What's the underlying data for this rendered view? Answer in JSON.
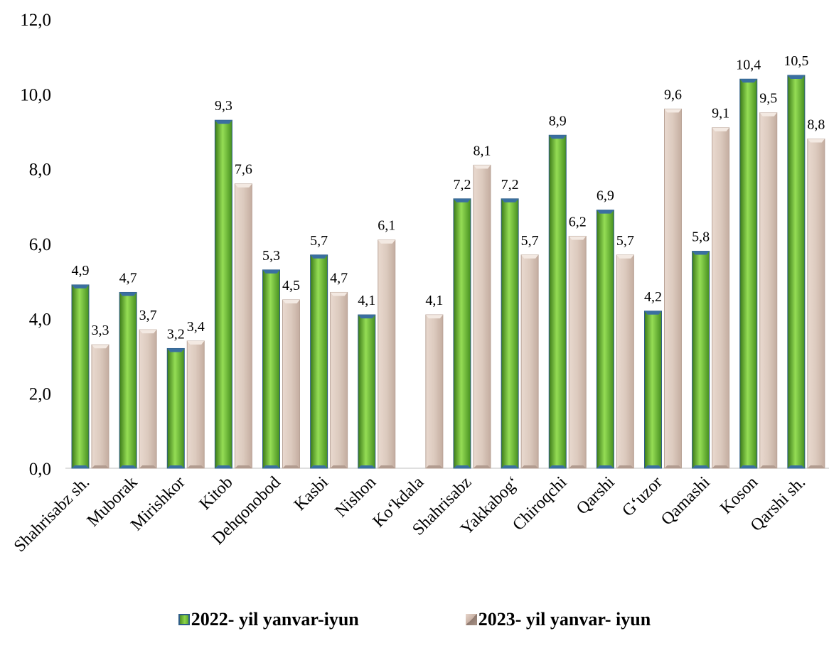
{
  "chart_data": {
    "type": "bar",
    "title": "",
    "xlabel": "",
    "ylabel": "",
    "ylim": [
      0,
      12
    ],
    "y_ticks": [
      "0,0",
      "2,0",
      "4,0",
      "6,0",
      "8,0",
      "10,0",
      "12,0"
    ],
    "grid": false,
    "legend_position": "bottom",
    "categories": [
      "Shahrisabz sh.",
      "Muborak",
      "Mirishkor",
      "Kitob",
      "Dehqonobod",
      "Kasbi",
      "Nishon",
      "Ko‘kdala",
      "Shahrisabz",
      "Yakkabog‘",
      "Chiroqchi",
      "Qarshi",
      "G‘uzor",
      "Qamashi",
      "Koson",
      "Qarshi sh."
    ],
    "series": [
      {
        "name": "2022- yil yanvar-iyun",
        "color": "#6cbf32",
        "values": [
          4.9,
          4.7,
          3.2,
          9.3,
          5.3,
          5.7,
          4.1,
          null,
          7.2,
          7.2,
          8.9,
          6.9,
          4.2,
          5.8,
          10.4,
          10.5
        ],
        "labels": [
          "4,9",
          "4,7",
          "3,2",
          "9,3",
          "5,3",
          "5,7",
          "4,1",
          "",
          "7,2",
          "7,2",
          "8,9",
          "6,9",
          "4,2",
          "5,8",
          "10,4",
          "10,5"
        ]
      },
      {
        "name": "2023- yil yanvar- iyun",
        "color": "#d9c4b8",
        "values": [
          3.3,
          3.7,
          3.4,
          7.6,
          4.5,
          4.7,
          6.1,
          4.1,
          8.1,
          5.7,
          6.2,
          5.7,
          9.6,
          9.1,
          9.5,
          8.8
        ],
        "labels": [
          "3,3",
          "3,7",
          "3,4",
          "7,6",
          "4,5",
          "4,7",
          "6,1",
          "4,1",
          "8,1",
          "5,7",
          "6,2",
          "5,7",
          "9,6",
          "9,1",
          "9,5",
          "8,8"
        ]
      }
    ]
  }
}
